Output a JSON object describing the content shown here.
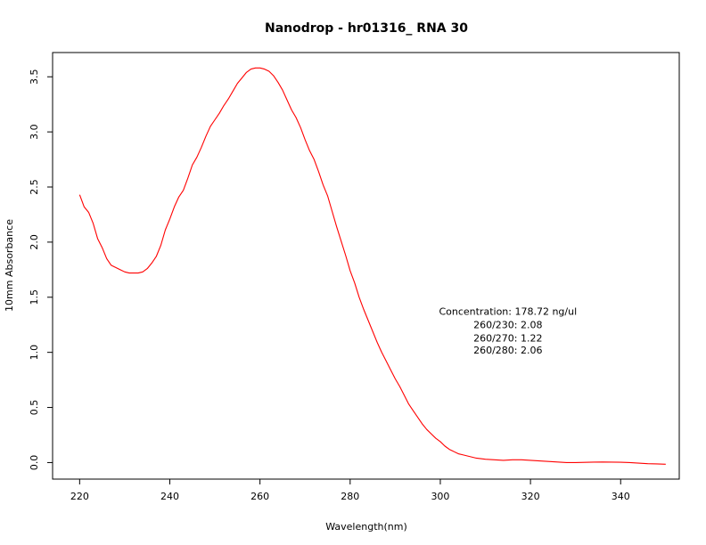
{
  "chart_data": {
    "type": "line",
    "title": "Nanodrop - hr01316_ RNA 30",
    "xlabel": "Wavelength(nm)",
    "ylabel": "10mm Absorbance",
    "xlim": [
      214,
      353
    ],
    "ylim": [
      -0.15,
      3.72
    ],
    "x_ticks": [
      220,
      240,
      260,
      280,
      300,
      320,
      340
    ],
    "y_ticks": [
      0.0,
      0.5,
      1.0,
      1.5,
      2.0,
      2.5,
      3.0,
      3.5
    ],
    "x_tick_labels": [
      "220",
      "240",
      "260",
      "280",
      "300",
      "320",
      "340"
    ],
    "y_tick_labels": [
      "0.0",
      "0.5",
      "1.0",
      "1.5",
      "2.0",
      "2.5",
      "3.0",
      "3.5"
    ],
    "grid": false,
    "series": [
      {
        "color": "#ff0000",
        "x": [
          220,
          221,
          222,
          223,
          224,
          225,
          226,
          227,
          228,
          229,
          230,
          231,
          232,
          233,
          234,
          235,
          236,
          237,
          238,
          239,
          240,
          241,
          242,
          243,
          244,
          245,
          246,
          247,
          248,
          249,
          250,
          251,
          252,
          253,
          254,
          255,
          256,
          257,
          258,
          259,
          260,
          261,
          262,
          263,
          264,
          265,
          266,
          267,
          268,
          269,
          270,
          271,
          272,
          273,
          274,
          275,
          276,
          277,
          278,
          279,
          280,
          281,
          282,
          283,
          284,
          285,
          286,
          287,
          288,
          289,
          290,
          291,
          292,
          293,
          294,
          295,
          296,
          297,
          298,
          299,
          300,
          301,
          302,
          303,
          304,
          305,
          306,
          307,
          308,
          309,
          310,
          312,
          314,
          316,
          318,
          320,
          322,
          324,
          326,
          328,
          330,
          332,
          334,
          336,
          338,
          340,
          342,
          344,
          346,
          348,
          350
        ],
        "y": [
          2.43,
          2.32,
          2.27,
          2.17,
          2.03,
          1.95,
          1.85,
          1.79,
          1.77,
          1.75,
          1.73,
          1.72,
          1.72,
          1.72,
          1.73,
          1.76,
          1.81,
          1.87,
          1.97,
          2.11,
          2.21,
          2.32,
          2.41,
          2.47,
          2.58,
          2.7,
          2.77,
          2.86,
          2.96,
          3.05,
          3.11,
          3.17,
          3.24,
          3.3,
          3.37,
          3.44,
          3.49,
          3.54,
          3.57,
          3.58,
          3.58,
          3.57,
          3.55,
          3.51,
          3.45,
          3.38,
          3.29,
          3.2,
          3.13,
          3.04,
          2.93,
          2.83,
          2.75,
          2.64,
          2.52,
          2.42,
          2.28,
          2.14,
          2.01,
          1.88,
          1.74,
          1.63,
          1.5,
          1.39,
          1.29,
          1.19,
          1.09,
          1.0,
          0.92,
          0.84,
          0.76,
          0.69,
          0.61,
          0.53,
          0.47,
          0.41,
          0.35,
          0.3,
          0.26,
          0.22,
          0.19,
          0.15,
          0.12,
          0.1,
          0.08,
          0.07,
          0.06,
          0.05,
          0.04,
          0.035,
          0.03,
          0.025,
          0.02,
          0.025,
          0.025,
          0.02,
          0.015,
          0.01,
          0.005,
          0.0,
          0.0,
          0.002,
          0.004,
          0.005,
          0.004,
          0.003,
          0.0,
          -0.005,
          -0.01,
          -0.012,
          -0.015
        ]
      }
    ],
    "annotations": [
      {
        "text": "Concentration: 178.72 ng/ul",
        "x": 315,
        "y": 1.34
      },
      {
        "text": "260/230: 2.08",
        "x": 315,
        "y": 1.22
      },
      {
        "text": "260/270: 1.22",
        "x": 315,
        "y": 1.1
      },
      {
        "text": "260/280: 2.06",
        "x": 315,
        "y": 0.99
      }
    ]
  }
}
